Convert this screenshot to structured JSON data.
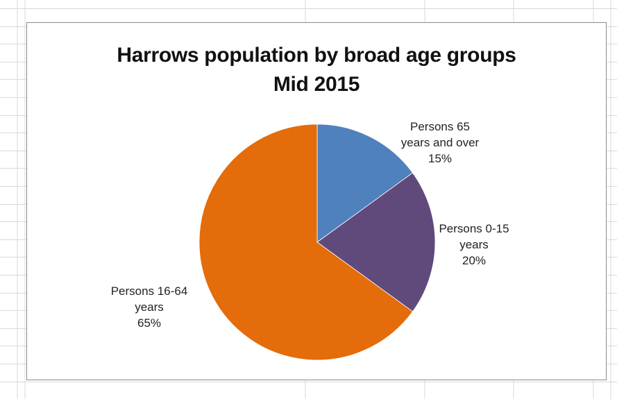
{
  "colors": {
    "grid_line": "#d9d9d9",
    "frame_border": "#8c8c8c"
  },
  "chart_data": {
    "type": "pie",
    "title_lines": [
      "Harrows population by broad age groups",
      "Mid 2015"
    ],
    "legend": "none",
    "slices": [
      {
        "label_lines": [
          "Persons 65",
          "years and over",
          "15%"
        ],
        "value": 15,
        "color": "#4f81bd"
      },
      {
        "label_lines": [
          "Persons 0-15",
          "years",
          "20%"
        ],
        "value": 20,
        "color": "#604a7b"
      },
      {
        "label_lines": [
          "Persons 16-64",
          "years",
          "65%"
        ],
        "value": 65,
        "color": "#e46c0a"
      }
    ]
  }
}
